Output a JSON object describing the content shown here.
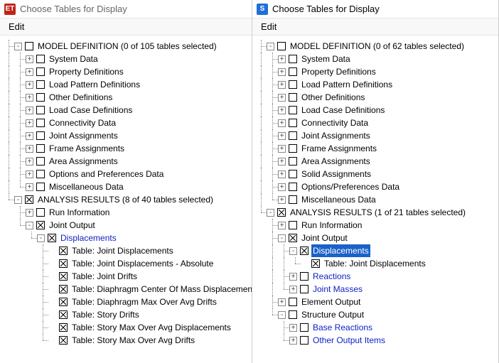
{
  "left": {
    "icon_bg": "#c02418",
    "icon_text": "ET",
    "window_title": "Choose Tables for Display",
    "menu_edit": "Edit",
    "tree": [
      {
        "depth": 0,
        "exp": "-",
        "chk": "off",
        "label": "MODEL DEFINITION  (0 of 105 tables selected)",
        "last": false
      },
      {
        "depth": 1,
        "exp": "+",
        "chk": "off",
        "label": "System Data",
        "last": false
      },
      {
        "depth": 1,
        "exp": "+",
        "chk": "off",
        "label": "Property Definitions",
        "last": false
      },
      {
        "depth": 1,
        "exp": "+",
        "chk": "off",
        "label": "Load Pattern Definitions",
        "last": false
      },
      {
        "depth": 1,
        "exp": "+",
        "chk": "off",
        "label": "Other Definitions",
        "last": false
      },
      {
        "depth": 1,
        "exp": "+",
        "chk": "off",
        "label": "Load Case Definitions",
        "last": false
      },
      {
        "depth": 1,
        "exp": "+",
        "chk": "off",
        "label": "Connectivity Data",
        "last": false
      },
      {
        "depth": 1,
        "exp": "+",
        "chk": "off",
        "label": "Joint Assignments",
        "last": false
      },
      {
        "depth": 1,
        "exp": "+",
        "chk": "off",
        "label": "Frame Assignments",
        "last": false
      },
      {
        "depth": 1,
        "exp": "+",
        "chk": "off",
        "label": "Area Assignments",
        "last": false
      },
      {
        "depth": 1,
        "exp": "+",
        "chk": "off",
        "label": "Options and Preferences Data",
        "last": false
      },
      {
        "depth": 1,
        "exp": "+",
        "chk": "off",
        "label": "Miscellaneous Data",
        "last": true
      },
      {
        "depth": 0,
        "exp": "-",
        "chk": "on",
        "label": "ANALYSIS RESULTS  (8 of 40 tables selected)",
        "last": true
      },
      {
        "depth": 1,
        "exp": "+",
        "chk": "off",
        "label": "Run Information",
        "last": false
      },
      {
        "depth": 1,
        "exp": "-",
        "chk": "on",
        "label": "Joint Output",
        "last": true
      },
      {
        "depth": 2,
        "exp": "-",
        "chk": "on",
        "label": "Displacements",
        "link": true,
        "last": true
      },
      {
        "depth": 3,
        "exp": "",
        "chk": "on",
        "label": "Table:  Joint Displacements",
        "last": false
      },
      {
        "depth": 3,
        "exp": "",
        "chk": "on",
        "label": "Table:  Joint Displacements - Absolute",
        "last": false
      },
      {
        "depth": 3,
        "exp": "",
        "chk": "on",
        "label": "Table:  Joint Drifts",
        "last": false
      },
      {
        "depth": 3,
        "exp": "",
        "chk": "on",
        "label": "Table:  Diaphragm Center Of Mass Displacemen",
        "last": false
      },
      {
        "depth": 3,
        "exp": "",
        "chk": "on",
        "label": "Table:  Diaphragm Max Over Avg Drifts",
        "last": false
      },
      {
        "depth": 3,
        "exp": "",
        "chk": "on",
        "label": "Table:  Story Drifts",
        "last": false
      },
      {
        "depth": 3,
        "exp": "",
        "chk": "on",
        "label": "Table:  Story Max Over Avg Displacements",
        "last": false
      },
      {
        "depth": 3,
        "exp": "",
        "chk": "on",
        "label": "Table:  Story Max Over Avg Drifts",
        "last": true
      }
    ]
  },
  "right": {
    "icon_bg": "#1f6fd6",
    "icon_text": "S",
    "window_title": "Choose Tables for Display",
    "menu_edit": "Edit",
    "tree": [
      {
        "depth": 0,
        "exp": "-",
        "chk": "off",
        "label": "MODEL DEFINITION  (0 of 62 tables selected)",
        "last": false
      },
      {
        "depth": 1,
        "exp": "+",
        "chk": "off",
        "label": "System Data",
        "last": false
      },
      {
        "depth": 1,
        "exp": "+",
        "chk": "off",
        "label": "Property Definitions",
        "last": false
      },
      {
        "depth": 1,
        "exp": "+",
        "chk": "off",
        "label": "Load Pattern Definitions",
        "last": false
      },
      {
        "depth": 1,
        "exp": "+",
        "chk": "off",
        "label": "Other Definitions",
        "last": false
      },
      {
        "depth": 1,
        "exp": "+",
        "chk": "off",
        "label": "Load Case Definitions",
        "last": false
      },
      {
        "depth": 1,
        "exp": "+",
        "chk": "off",
        "label": "Connectivity Data",
        "last": false
      },
      {
        "depth": 1,
        "exp": "+",
        "chk": "off",
        "label": "Joint Assignments",
        "last": false
      },
      {
        "depth": 1,
        "exp": "+",
        "chk": "off",
        "label": "Frame Assignments",
        "last": false
      },
      {
        "depth": 1,
        "exp": "+",
        "chk": "off",
        "label": "Area Assignments",
        "last": false
      },
      {
        "depth": 1,
        "exp": "+",
        "chk": "off",
        "label": "Solid Assignments",
        "last": false
      },
      {
        "depth": 1,
        "exp": "+",
        "chk": "off",
        "label": "Options/Preferences Data",
        "last": false
      },
      {
        "depth": 1,
        "exp": "+",
        "chk": "off",
        "label": "Miscellaneous Data",
        "last": true
      },
      {
        "depth": 0,
        "exp": "-",
        "chk": "on",
        "label": "ANALYSIS RESULTS  (1 of 21 tables selected)",
        "last": true
      },
      {
        "depth": 1,
        "exp": "+",
        "chk": "off",
        "label": "Run Information",
        "last": false
      },
      {
        "depth": 1,
        "exp": "-",
        "chk": "on",
        "label": "Joint Output",
        "last": false
      },
      {
        "depth": 2,
        "exp": "-",
        "chk": "on",
        "label": "Displacements",
        "link": true,
        "selected": true,
        "last": false
      },
      {
        "depth": 3,
        "exp": "",
        "chk": "on",
        "label": "Table:  Joint Displacements",
        "last": true
      },
      {
        "depth": 2,
        "exp": "+",
        "chk": "off",
        "label": "Reactions",
        "link": true,
        "last": false
      },
      {
        "depth": 2,
        "exp": "+",
        "chk": "off",
        "label": "Joint Masses",
        "link": true,
        "last": true
      },
      {
        "depth": 1,
        "exp": "+",
        "chk": "off",
        "label": "Element Output",
        "last": false
      },
      {
        "depth": 1,
        "exp": "-",
        "chk": "off",
        "label": "Structure Output",
        "last": true
      },
      {
        "depth": 2,
        "exp": "+",
        "chk": "off",
        "label": "Base Reactions",
        "link": true,
        "last": false
      },
      {
        "depth": 2,
        "exp": "+",
        "chk": "off",
        "label": "Other Output Items",
        "link": true,
        "last": true
      }
    ]
  }
}
